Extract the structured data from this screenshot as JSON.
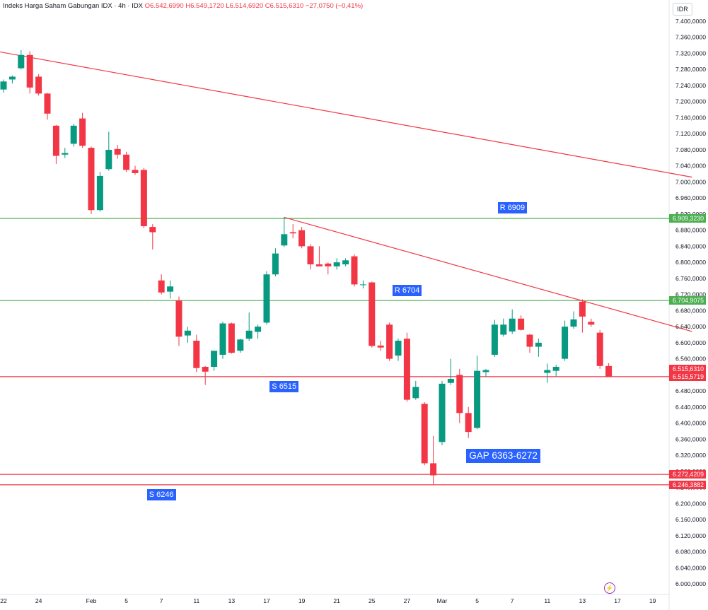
{
  "header": {
    "symbol_name": "Indeks Harga Saham Gabungan IDX · 4h · IDX",
    "open": "O6.542,6990",
    "high": "H6.549,1720",
    "low": "L6.514,6920",
    "close": "C6.515,6310",
    "change": "−27,0750 (−0,41%)"
  },
  "currency_label": "IDR",
  "colors": {
    "up": "#089981",
    "down": "#f23645",
    "trendline": "#f23645",
    "resistance": "#4caf50",
    "support": "#f23645",
    "label_bg": "#2962ff",
    "axis_text": "#131722",
    "alert_icon": "#9c27b0"
  },
  "icons": {
    "alert": "lightning-icon"
  },
  "chart_data": {
    "type": "candlestick",
    "interval": "4h",
    "ylim": [
      5980,
      7420
    ],
    "y_ticks": [
      "7.400,0000",
      "7.360,0000",
      "7.320,0000",
      "7.280,0000",
      "7.240,0000",
      "7.200,0000",
      "7.160,0000",
      "7.120,0000",
      "7.080,0000",
      "7.040,0000",
      "7.000,0000",
      "6.960,0000",
      "6.920,0000",
      "6.880,0000",
      "6.840,0000",
      "6.800,0000",
      "6.760,0000",
      "6.720,0000",
      "6.680,0000",
      "6.640,0000",
      "6.600,0000",
      "6.560,0000",
      "6.520,0000",
      "6.480,0000",
      "6.440,0000",
      "6.400,0000",
      "6.360,0000",
      "6.320,0000",
      "6.280,0000",
      "6.240,0000",
      "6.200,0000",
      "6.160,0000",
      "6.120,0000",
      "6.080,0000",
      "6.040,0000",
      "6.000,0000"
    ],
    "y_tick_values": [
      7400,
      7360,
      7320,
      7280,
      7240,
      7200,
      7160,
      7120,
      7080,
      7040,
      7000,
      6960,
      6920,
      6880,
      6840,
      6800,
      6760,
      6720,
      6680,
      6640,
      6600,
      6560,
      6520,
      6480,
      6440,
      6400,
      6360,
      6320,
      6280,
      6240,
      6200,
      6160,
      6120,
      6080,
      6040,
      6000
    ],
    "x_ticks": [
      {
        "label": "22",
        "i": 0
      },
      {
        "label": "24",
        "i": 4
      },
      {
        "label": "Feb",
        "i": 10
      },
      {
        "label": "5",
        "i": 14
      },
      {
        "label": "7",
        "i": 18
      },
      {
        "label": "11",
        "i": 22
      },
      {
        "label": "13",
        "i": 26
      },
      {
        "label": "17",
        "i": 30
      },
      {
        "label": "19",
        "i": 34
      },
      {
        "label": "21",
        "i": 38
      },
      {
        "label": "25",
        "i": 42
      },
      {
        "label": "27",
        "i": 46
      },
      {
        "label": "Mar",
        "i": 50
      },
      {
        "label": "5",
        "i": 54
      },
      {
        "label": "7",
        "i": 58
      },
      {
        "label": "11",
        "i": 62
      },
      {
        "label": "13",
        "i": 66
      },
      {
        "label": "17",
        "i": 70
      },
      {
        "label": "19",
        "i": 74
      }
    ],
    "candles": [
      {
        "o": 7230,
        "h": 7255,
        "l": 7222,
        "c": 7250
      },
      {
        "o": 7255,
        "h": 7265,
        "l": 7245,
        "c": 7262
      },
      {
        "o": 7283,
        "h": 7328,
        "l": 7280,
        "c": 7316
      },
      {
        "o": 7316,
        "h": 7325,
        "l": 7220,
        "c": 7235
      },
      {
        "o": 7262,
        "h": 7268,
        "l": 7215,
        "c": 7220
      },
      {
        "o": 7220,
        "h": 7222,
        "l": 7155,
        "c": 7170
      },
      {
        "o": 7140,
        "h": 7142,
        "l": 7045,
        "c": 7065
      },
      {
        "o": 7068,
        "h": 7085,
        "l": 7060,
        "c": 7072
      },
      {
        "o": 7095,
        "h": 7145,
        "l": 7088,
        "c": 7140
      },
      {
        "o": 7158,
        "h": 7172,
        "l": 7085,
        "c": 7090
      },
      {
        "o": 7085,
        "h": 7088,
        "l": 6920,
        "c": 6930
      },
      {
        "o": 6930,
        "h": 7025,
        "l": 6926,
        "c": 7015
      },
      {
        "o": 7032,
        "h": 7125,
        "l": 7028,
        "c": 7080
      },
      {
        "o": 7082,
        "h": 7092,
        "l": 7058,
        "c": 7068
      },
      {
        "o": 7068,
        "h": 7075,
        "l": 7025,
        "c": 7030
      },
      {
        "o": 7030,
        "h": 7040,
        "l": 7018,
        "c": 7022
      },
      {
        "o": 7030,
        "h": 7035,
        "l": 6885,
        "c": 6890
      },
      {
        "o": 6888,
        "h": 6895,
        "l": 6832,
        "c": 6875
      },
      {
        "o": 6755,
        "h": 6770,
        "l": 6720,
        "c": 6725
      },
      {
        "o": 6727,
        "h": 6755,
        "l": 6710,
        "c": 6740
      },
      {
        "o": 6705,
        "h": 6715,
        "l": 6592,
        "c": 6615
      },
      {
        "o": 6618,
        "h": 6640,
        "l": 6600,
        "c": 6630
      },
      {
        "o": 6605,
        "h": 6620,
        "l": 6527,
        "c": 6537
      },
      {
        "o": 6540,
        "h": 6542,
        "l": 6495,
        "c": 6528
      },
      {
        "o": 6540,
        "h": 6580,
        "l": 6530,
        "c": 6580
      },
      {
        "o": 6570,
        "h": 6652,
        "l": 6560,
        "c": 6648
      },
      {
        "o": 6648,
        "h": 6650,
        "l": 6573,
        "c": 6575
      },
      {
        "o": 6580,
        "h": 6610,
        "l": 6575,
        "c": 6608
      },
      {
        "o": 6610,
        "h": 6675,
        "l": 6605,
        "c": 6630
      },
      {
        "o": 6627,
        "h": 6645,
        "l": 6610,
        "c": 6640
      },
      {
        "o": 6650,
        "h": 6778,
        "l": 6645,
        "c": 6770
      },
      {
        "o": 6770,
        "h": 6835,
        "l": 6765,
        "c": 6822
      },
      {
        "o": 6842,
        "h": 6912,
        "l": 6838,
        "c": 6870
      },
      {
        "o": 6875,
        "h": 6895,
        "l": 6860,
        "c": 6872
      },
      {
        "o": 6880,
        "h": 6888,
        "l": 6835,
        "c": 6840
      },
      {
        "o": 6840,
        "h": 6845,
        "l": 6782,
        "c": 6795
      },
      {
        "o": 6795,
        "h": 6840,
        "l": 6790,
        "c": 6790
      },
      {
        "o": 6797,
        "h": 6800,
        "l": 6770,
        "c": 6790
      },
      {
        "o": 6790,
        "h": 6810,
        "l": 6782,
        "c": 6800
      },
      {
        "o": 6795,
        "h": 6810,
        "l": 6790,
        "c": 6805
      },
      {
        "o": 6815,
        "h": 6820,
        "l": 6740,
        "c": 6745
      },
      {
        "o": 6745,
        "h": 6755,
        "l": 6735,
        "c": 6745
      },
      {
        "o": 6750,
        "h": 6752,
        "l": 6588,
        "c": 6592
      },
      {
        "o": 6593,
        "h": 6605,
        "l": 6580,
        "c": 6588
      },
      {
        "o": 6645,
        "h": 6650,
        "l": 6555,
        "c": 6560
      },
      {
        "o": 6568,
        "h": 6610,
        "l": 6555,
        "c": 6605
      },
      {
        "o": 6610,
        "h": 6625,
        "l": 6453,
        "c": 6458
      },
      {
        "o": 6462,
        "h": 6505,
        "l": 6458,
        "c": 6490
      },
      {
        "o": 6448,
        "h": 6452,
        "l": 6295,
        "c": 6300
      },
      {
        "o": 6300,
        "h": 6368,
        "l": 6246,
        "c": 6270
      },
      {
        "o": 6353,
        "h": 6505,
        "l": 6345,
        "c": 6498
      },
      {
        "o": 6500,
        "h": 6560,
        "l": 6495,
        "c": 6510
      },
      {
        "o": 6520,
        "h": 6535,
        "l": 6400,
        "c": 6425
      },
      {
        "o": 6425,
        "h": 6440,
        "l": 6363,
        "c": 6378
      },
      {
        "o": 6388,
        "h": 6568,
        "l": 6385,
        "c": 6530
      },
      {
        "o": 6527,
        "h": 6535,
        "l": 6515,
        "c": 6532
      },
      {
        "o": 6570,
        "h": 6657,
        "l": 6565,
        "c": 6645
      },
      {
        "o": 6620,
        "h": 6660,
        "l": 6615,
        "c": 6645
      },
      {
        "o": 6628,
        "h": 6683,
        "l": 6622,
        "c": 6660
      },
      {
        "o": 6660,
        "h": 6668,
        "l": 6630,
        "c": 6632
      },
      {
        "o": 6620,
        "h": 6622,
        "l": 6575,
        "c": 6590
      },
      {
        "o": 6590,
        "h": 6610,
        "l": 6565,
        "c": 6600
      },
      {
        "o": 6525,
        "h": 6548,
        "l": 6500,
        "c": 6532
      },
      {
        "o": 6530,
        "h": 6545,
        "l": 6515,
        "c": 6540
      },
      {
        "o": 6560,
        "h": 6655,
        "l": 6555,
        "c": 6640
      },
      {
        "o": 6640,
        "h": 6678,
        "l": 6635,
        "c": 6658
      },
      {
        "o": 6702,
        "h": 6708,
        "l": 6625,
        "c": 6665
      },
      {
        "o": 6652,
        "h": 6660,
        "l": 6640,
        "c": 6645
      },
      {
        "o": 6625,
        "h": 6632,
        "l": 6535,
        "c": 6542
      },
      {
        "o": 6542,
        "h": 6549,
        "l": 6515,
        "c": 6516
      }
    ],
    "trendlines": [
      {
        "from": {
          "i": -0.5,
          "v": 7324
        },
        "to": {
          "i": 78.5,
          "v": 7012
        }
      },
      {
        "from": {
          "i": 32,
          "v": 6912
        },
        "to": {
          "i": 78.5,
          "v": 6628
        }
      }
    ],
    "horizontal_levels": [
      {
        "value": 6909.323,
        "tag": "6.909,3230",
        "kind": "resistance"
      },
      {
        "value": 6704.9075,
        "tag": "6.704,9075",
        "kind": "resistance"
      },
      {
        "value": 6515.5719,
        "tag": "6.515,5719",
        "kind": "support"
      },
      {
        "value": 6272.4209,
        "tag": "6.272,4209",
        "kind": "support"
      },
      {
        "value": 6246.3882,
        "tag": "6.246,3882",
        "kind": "support"
      }
    ],
    "last_price_tag": "6.515,6310",
    "last_price_value": 6515.631,
    "annotations": [
      {
        "text": "R 6909",
        "i": 58,
        "v": 6935,
        "big": false
      },
      {
        "text": "R 6704",
        "i": 46,
        "v": 6730,
        "big": false
      },
      {
        "text": "S 6515",
        "i": 32,
        "v": 6490,
        "big": false
      },
      {
        "text": "GAP 6363-6272",
        "i": 57,
        "v": 6318,
        "big": true
      },
      {
        "text": "S 6246",
        "i": 18,
        "v": 6221,
        "big": false
      }
    ]
  }
}
